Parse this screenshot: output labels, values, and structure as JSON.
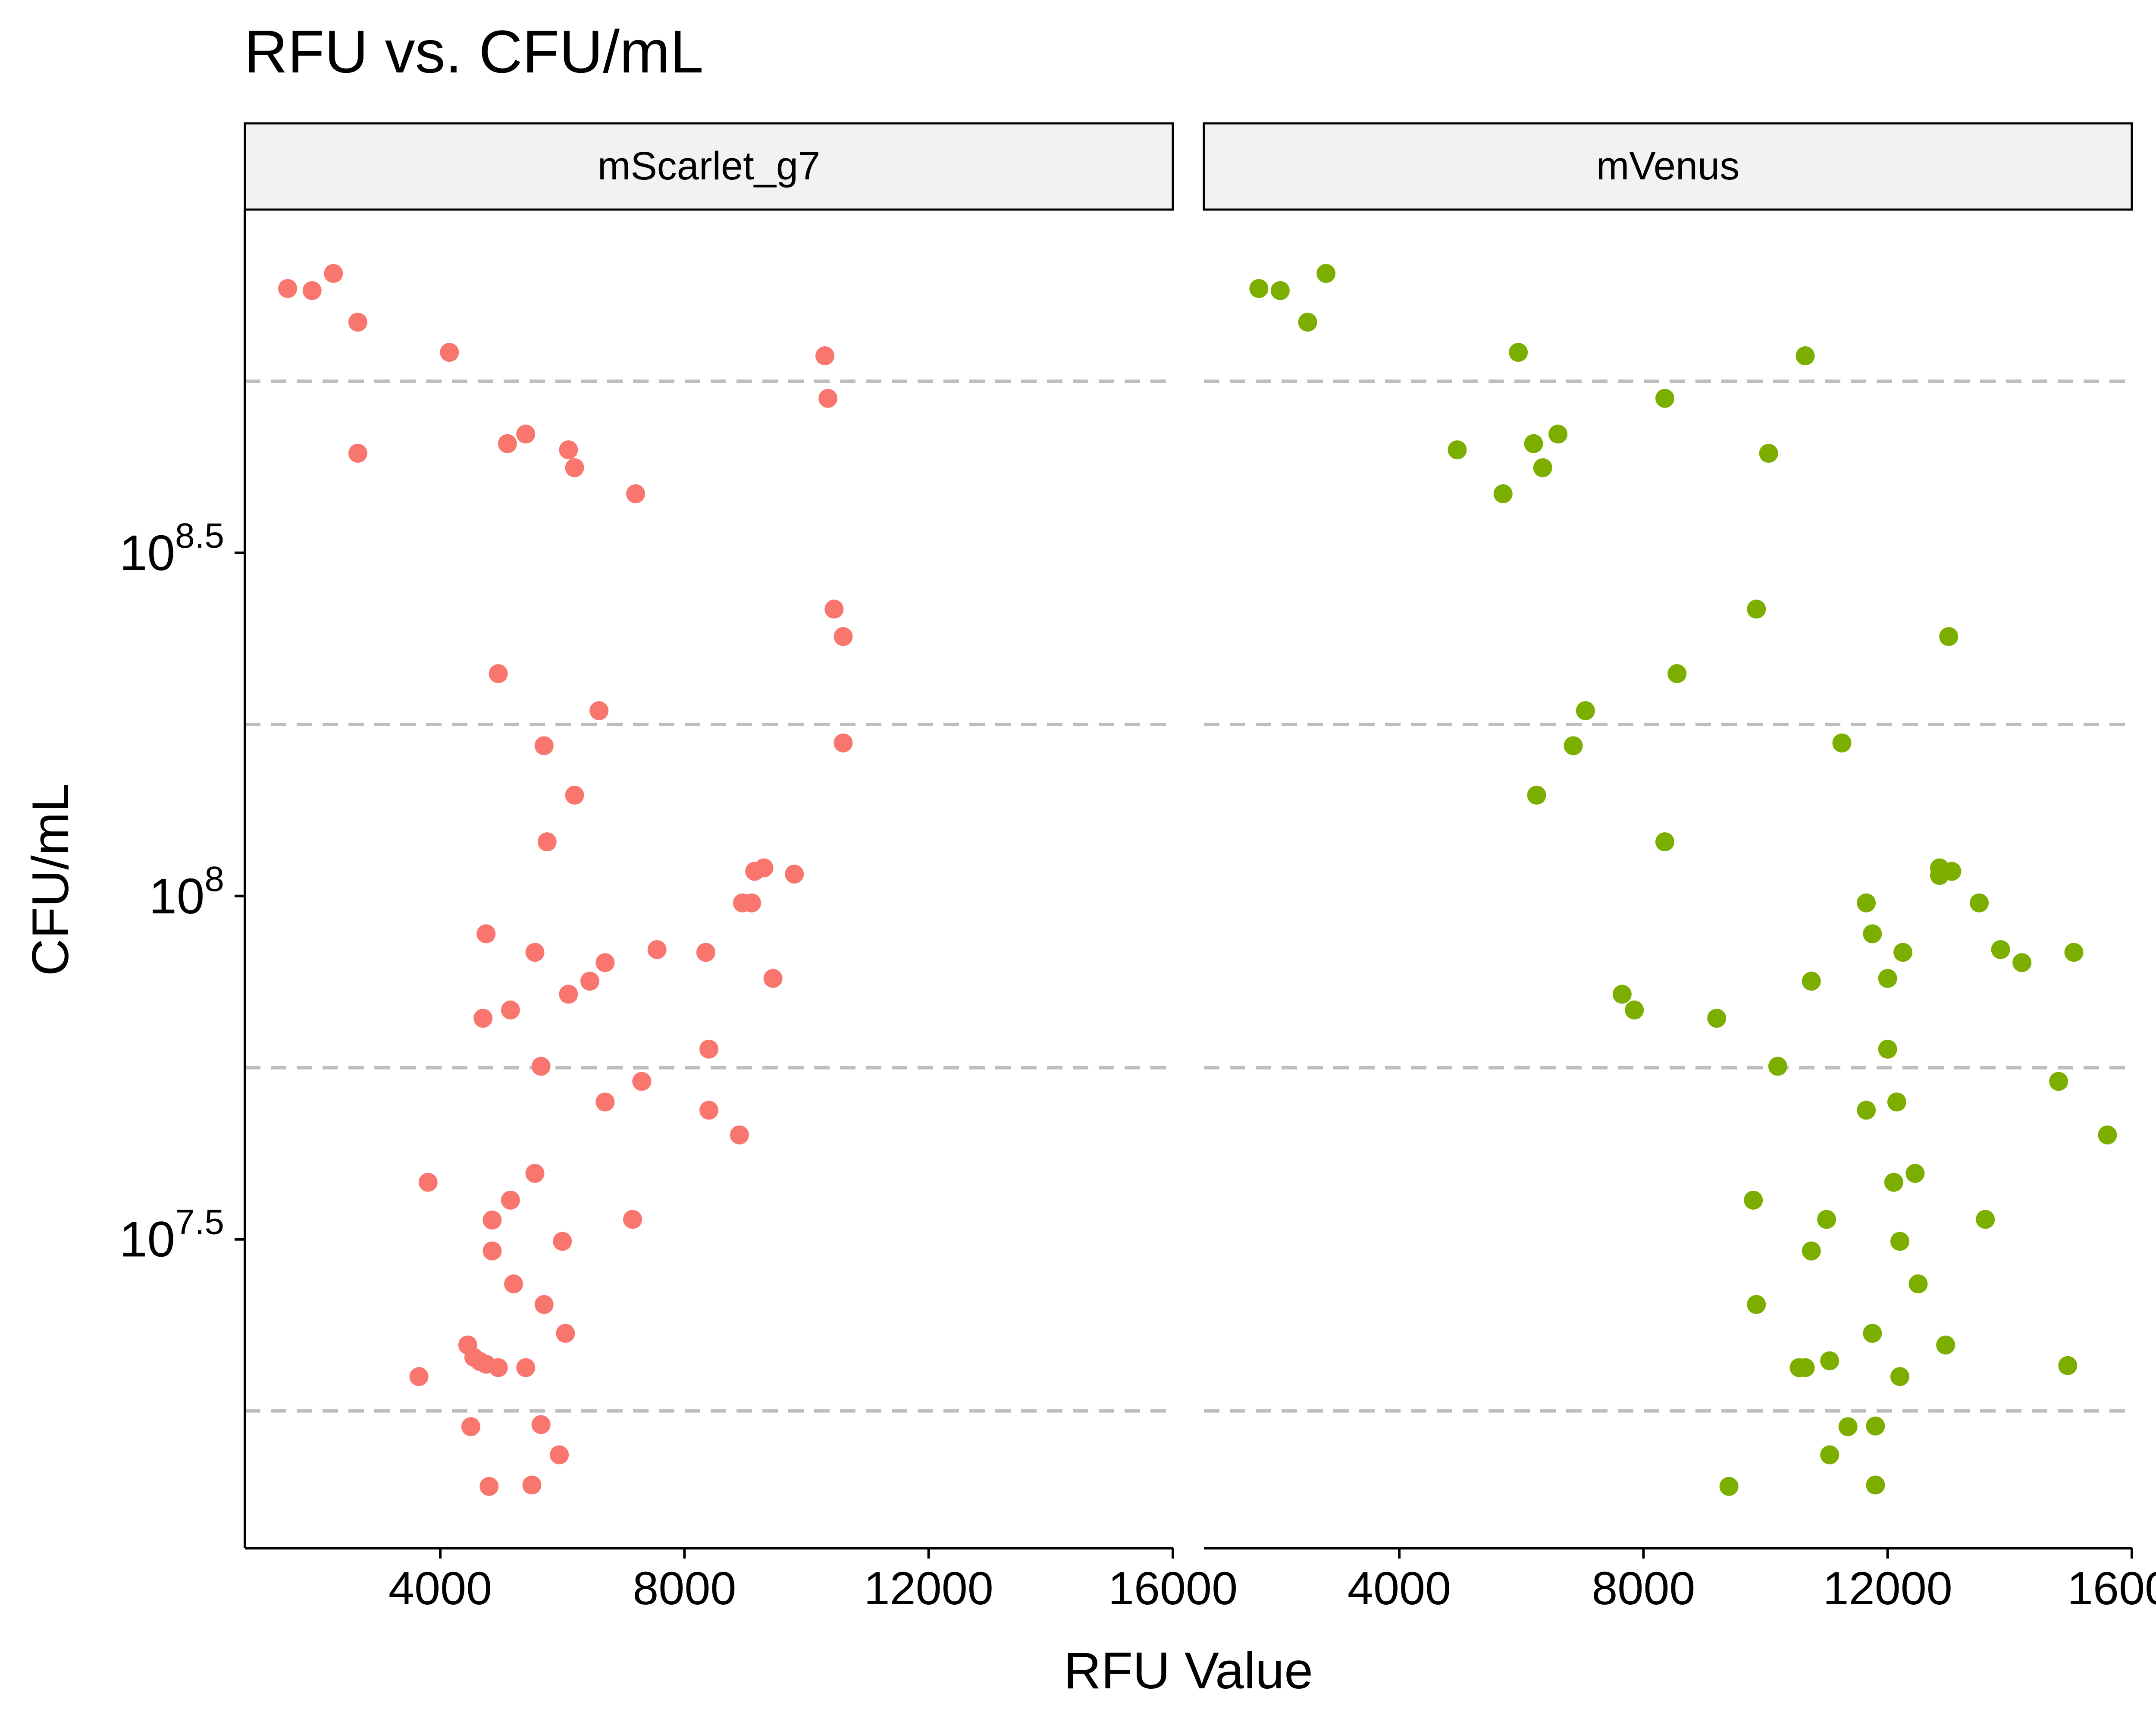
{
  "chart_data": {
    "type": "scatter",
    "title": "RFU vs. CFU/mL",
    "xlabel": "RFU Value",
    "ylabel": "CFU/mL",
    "y_scale": "log10",
    "xlim": [
      800,
      16000
    ],
    "ylim_log10": [
      7.05,
      9.0
    ],
    "x_ticks": [
      4000,
      8000,
      12000,
      16000
    ],
    "x_tick_labels": [
      "4000",
      "8000",
      "12000",
      "16000"
    ],
    "y_ticks_log10": [
      7.5,
      8.0,
      8.5
    ],
    "y_tick_labels": [
      {
        "base": "10",
        "exp": "7.5"
      },
      {
        "base": "10",
        "exp": "8"
      },
      {
        "base": "10",
        "exp": "8.5"
      }
    ],
    "reference_lines_log10": [
      7.25,
      7.75,
      8.25,
      8.75
    ],
    "grid": false,
    "legend": "none",
    "series": [
      {
        "name": "mScarlet_g7",
        "color": "#F8766D",
        "points": [
          [
            1500,
            8.885
          ],
          [
            1900,
            8.882
          ],
          [
            2250,
            8.907
          ],
          [
            2650,
            8.836
          ],
          [
            4150,
            8.792
          ],
          [
            2650,
            8.645
          ],
          [
            10300,
            8.787
          ],
          [
            10350,
            8.725
          ],
          [
            5100,
            8.659
          ],
          [
            5400,
            8.673
          ],
          [
            6100,
            8.65
          ],
          [
            6200,
            8.624
          ],
          [
            7200,
            8.586
          ],
          [
            10450,
            8.418
          ],
          [
            10600,
            8.378
          ],
          [
            4950,
            8.324
          ],
          [
            6600,
            8.27
          ],
          [
            10600,
            8.223
          ],
          [
            5700,
            8.219
          ],
          [
            6200,
            8.147
          ],
          [
            5750,
            8.079
          ],
          [
            9800,
            8.032
          ],
          [
            9300,
            8.041
          ],
          [
            9150,
            8.036
          ],
          [
            8950,
            7.99
          ],
          [
            9100,
            7.99
          ],
          [
            4750,
            7.945
          ],
          [
            5550,
            7.918
          ],
          [
            7550,
            7.922
          ],
          [
            6700,
            7.903
          ],
          [
            8350,
            7.918
          ],
          [
            9450,
            7.88
          ],
          [
            6450,
            7.876
          ],
          [
            6100,
            7.857
          ],
          [
            5150,
            7.834
          ],
          [
            4700,
            7.822
          ],
          [
            8400,
            7.777
          ],
          [
            5650,
            7.752
          ],
          [
            7300,
            7.73
          ],
          [
            6700,
            7.7
          ],
          [
            8400,
            7.688
          ],
          [
            8900,
            7.652
          ],
          [
            3800,
            7.583
          ],
          [
            5550,
            7.596
          ],
          [
            5150,
            7.557
          ],
          [
            4850,
            7.528
          ],
          [
            7150,
            7.529
          ],
          [
            4850,
            7.483
          ],
          [
            6000,
            7.497
          ],
          [
            5200,
            7.435
          ],
          [
            5700,
            7.405
          ],
          [
            6050,
            7.363
          ],
          [
            4450,
            7.346
          ],
          [
            4550,
            7.328
          ],
          [
            4650,
            7.322
          ],
          [
            4750,
            7.318
          ],
          [
            4950,
            7.313
          ],
          [
            5400,
            7.313
          ],
          [
            3650,
            7.3
          ],
          [
            5650,
            7.23
          ],
          [
            4500,
            7.227
          ],
          [
            5950,
            7.186
          ],
          [
            4800,
            7.14
          ],
          [
            5500,
            7.142
          ]
        ]
      },
      {
        "name": "mVenus",
        "color": "#7CAE00",
        "points": [
          [
            1700,
            8.885
          ],
          [
            2050,
            8.882
          ],
          [
            2800,
            8.907
          ],
          [
            2500,
            8.836
          ],
          [
            5950,
            8.792
          ],
          [
            10650,
            8.787
          ],
          [
            8350,
            8.725
          ],
          [
            4950,
            8.65
          ],
          [
            6200,
            8.659
          ],
          [
            6600,
            8.673
          ],
          [
            6350,
            8.624
          ],
          [
            10050,
            8.645
          ],
          [
            5700,
            8.586
          ],
          [
            9850,
            8.418
          ],
          [
            13000,
            8.378
          ],
          [
            8550,
            8.324
          ],
          [
            7050,
            8.27
          ],
          [
            6850,
            8.219
          ],
          [
            11250,
            8.223
          ],
          [
            6250,
            8.147
          ],
          [
            8350,
            8.079
          ],
          [
            12850,
            8.041
          ],
          [
            13050,
            8.036
          ],
          [
            12850,
            8.03
          ],
          [
            11650,
            7.99
          ],
          [
            13500,
            7.99
          ],
          [
            11750,
            7.945
          ],
          [
            12250,
            7.918
          ],
          [
            13850,
            7.922
          ],
          [
            14200,
            7.903
          ],
          [
            15050,
            7.918
          ],
          [
            10750,
            7.876
          ],
          [
            12000,
            7.88
          ],
          [
            7650,
            7.857
          ],
          [
            7850,
            7.834
          ],
          [
            9200,
            7.822
          ],
          [
            12000,
            7.777
          ],
          [
            10200,
            7.752
          ],
          [
            14800,
            7.73
          ],
          [
            12150,
            7.7
          ],
          [
            11650,
            7.688
          ],
          [
            15600,
            7.652
          ],
          [
            12450,
            7.596
          ],
          [
            12100,
            7.583
          ],
          [
            9800,
            7.557
          ],
          [
            11000,
            7.529
          ],
          [
            13600,
            7.529
          ],
          [
            12200,
            7.497
          ],
          [
            10750,
            7.483
          ],
          [
            12500,
            7.435
          ],
          [
            9850,
            7.405
          ],
          [
            11750,
            7.363
          ],
          [
            12950,
            7.346
          ],
          [
            11050,
            7.323
          ],
          [
            10550,
            7.313
          ],
          [
            10650,
            7.313
          ],
          [
            14950,
            7.316
          ],
          [
            12200,
            7.3
          ],
          [
            11350,
            7.227
          ],
          [
            11800,
            7.228
          ],
          [
            11050,
            7.186
          ],
          [
            9400,
            7.14
          ],
          [
            11800,
            7.142
          ]
        ]
      }
    ]
  }
}
